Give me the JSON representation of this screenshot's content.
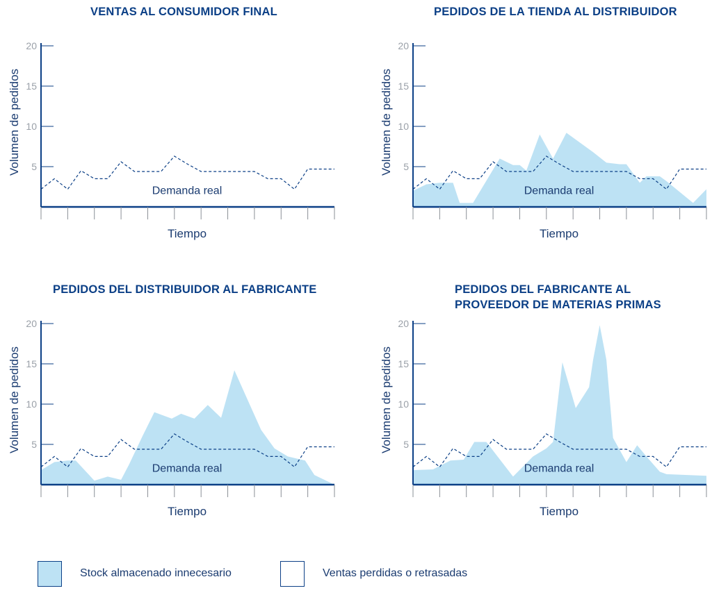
{
  "colors": {
    "axis": "#0b3f86",
    "title": "#0b3f86",
    "fill": "#bde2f4",
    "demand_line": "#0b3f86",
    "tick_label": "#9aa0a8",
    "axis_label": "#1a3b70"
  },
  "legend": {
    "excess": "Stock almacenado innecesario",
    "lost": "Ventas perdidas o retrasadas"
  },
  "chart_data": [
    {
      "type": "area",
      "title_lines": [
        "VENTAS AL CONSUMIDOR FINAL"
      ],
      "ylabel": "Volumen de pedidos",
      "xlabel": "Tiempo",
      "ylim": [
        0,
        20
      ],
      "yticks": [
        5,
        10,
        15,
        20
      ],
      "x_ticks": 11,
      "demand_label": "Demanda real",
      "demand": [
        [
          0,
          2.2
        ],
        [
          1,
          3.5
        ],
        [
          2,
          2.2
        ],
        [
          3,
          4.5
        ],
        [
          4,
          3.5
        ],
        [
          5,
          3.5
        ],
        [
          6,
          5.6
        ],
        [
          7,
          4.4
        ],
        [
          8,
          4.4
        ],
        [
          9,
          4.4
        ],
        [
          10,
          6.3
        ],
        [
          11,
          5.3
        ],
        [
          12,
          4.4
        ],
        [
          13,
          4.4
        ],
        [
          14,
          4.4
        ],
        [
          15,
          4.4
        ],
        [
          16,
          4.4
        ],
        [
          17,
          3.5
        ],
        [
          18,
          3.5
        ],
        [
          19,
          2.2
        ],
        [
          20,
          4.7
        ],
        [
          21,
          4.7
        ],
        [
          22,
          4.7
        ]
      ],
      "area": []
    },
    {
      "type": "area",
      "title_lines": [
        "PEDIDOS DE LA TIENDA AL DISTRIBUIDOR"
      ],
      "ylabel": "Volumen de pedidos",
      "xlabel": "Tiempo",
      "ylim": [
        0,
        20
      ],
      "yticks": [
        5,
        10,
        15,
        20
      ],
      "x_ticks": 11,
      "demand_label": "Demanda real",
      "demand": [
        [
          0,
          2.2
        ],
        [
          1,
          3.5
        ],
        [
          2,
          2.2
        ],
        [
          3,
          4.5
        ],
        [
          4,
          3.5
        ],
        [
          5,
          3.5
        ],
        [
          6,
          5.6
        ],
        [
          7,
          4.4
        ],
        [
          8,
          4.4
        ],
        [
          9,
          4.4
        ],
        [
          10,
          6.3
        ],
        [
          11,
          5.3
        ],
        [
          12,
          4.4
        ],
        [
          13,
          4.4
        ],
        [
          14,
          4.4
        ],
        [
          15,
          4.4
        ],
        [
          16,
          4.4
        ],
        [
          17,
          3.5
        ],
        [
          18,
          3.5
        ],
        [
          19,
          2.2
        ],
        [
          20,
          4.7
        ],
        [
          21,
          4.7
        ],
        [
          22,
          4.7
        ]
      ],
      "area": [
        [
          0,
          2
        ],
        [
          1,
          2.8
        ],
        [
          2,
          3
        ],
        [
          3,
          3
        ],
        [
          3.5,
          0.5
        ],
        [
          4.5,
          0.5
        ],
        [
          6.5,
          6
        ],
        [
          7.5,
          5.2
        ],
        [
          8,
          5.2
        ],
        [
          8.5,
          4.5
        ],
        [
          9.5,
          9
        ],
        [
          10.5,
          6
        ],
        [
          11.5,
          9.2
        ],
        [
          13.5,
          6.8
        ],
        [
          14.5,
          5.5
        ],
        [
          15.5,
          5.3
        ],
        [
          16,
          5.3
        ],
        [
          17,
          3
        ],
        [
          17.5,
          3.8
        ],
        [
          18.5,
          3.8
        ],
        [
          19,
          3.2
        ],
        [
          21,
          0.5
        ],
        [
          22,
          2.2
        ]
      ]
    },
    {
      "type": "area",
      "title_lines": [
        "PEDIDOS DEL DISTRIBUIDOR AL FABRICANTE"
      ],
      "ylabel": "Volumen de pedidos",
      "xlabel": "Tiempo",
      "ylim": [
        0,
        20
      ],
      "yticks": [
        5,
        10,
        15,
        20
      ],
      "x_ticks": 11,
      "demand_label": "Demanda real",
      "demand": [
        [
          0,
          2.2
        ],
        [
          1,
          3.5
        ],
        [
          2,
          2.2
        ],
        [
          3,
          4.5
        ],
        [
          4,
          3.5
        ],
        [
          5,
          3.5
        ],
        [
          6,
          5.6
        ],
        [
          7,
          4.4
        ],
        [
          8,
          4.4
        ],
        [
          9,
          4.4
        ],
        [
          10,
          6.3
        ],
        [
          11,
          5.3
        ],
        [
          12,
          4.4
        ],
        [
          13,
          4.4
        ],
        [
          14,
          4.4
        ],
        [
          15,
          4.4
        ],
        [
          16,
          4.4
        ],
        [
          17,
          3.5
        ],
        [
          18,
          3.5
        ],
        [
          19,
          2.2
        ],
        [
          20,
          4.7
        ],
        [
          21,
          4.7
        ],
        [
          22,
          4.7
        ]
      ],
      "area": [
        [
          0,
          1.8
        ],
        [
          1,
          2.8
        ],
        [
          2,
          3
        ],
        [
          2.6,
          3
        ],
        [
          4,
          0.5
        ],
        [
          5,
          1
        ],
        [
          6,
          0.6
        ],
        [
          6.6,
          2.5
        ],
        [
          7.6,
          6
        ],
        [
          8.5,
          9
        ],
        [
          9.8,
          8.2
        ],
        [
          10.5,
          8.8
        ],
        [
          11.5,
          8.2
        ],
        [
          12.5,
          9.9
        ],
        [
          13.5,
          8.3
        ],
        [
          14.5,
          14.2
        ],
        [
          15.5,
          10.5
        ],
        [
          16.5,
          6.8
        ],
        [
          17.5,
          4.5
        ],
        [
          18.5,
          3.5
        ],
        [
          19.8,
          3
        ],
        [
          20.5,
          1.2
        ],
        [
          22,
          0
        ]
      ]
    },
    {
      "type": "area",
      "title_lines": [
        "PEDIDOS DEL FABRICANTE AL",
        "PROVEEDOR DE MATERIAS PRIMAS"
      ],
      "ylabel": "Volumen de pedidos",
      "xlabel": "Tiempo",
      "ylim": [
        0,
        20
      ],
      "yticks": [
        5,
        10,
        15,
        20
      ],
      "x_ticks": 11,
      "demand_label": "Demanda real",
      "demand": [
        [
          0,
          2.2
        ],
        [
          1,
          3.5
        ],
        [
          2,
          2.2
        ],
        [
          3,
          4.5
        ],
        [
          4,
          3.5
        ],
        [
          5,
          3.5
        ],
        [
          6,
          5.6
        ],
        [
          7,
          4.4
        ],
        [
          8,
          4.4
        ],
        [
          9,
          4.4
        ],
        [
          10,
          6.3
        ],
        [
          11,
          5.3
        ],
        [
          12,
          4.4
        ],
        [
          13,
          4.4
        ],
        [
          14,
          4.4
        ],
        [
          15,
          4.4
        ],
        [
          16,
          4.4
        ],
        [
          17,
          3.5
        ],
        [
          18,
          3.5
        ],
        [
          19,
          2.2
        ],
        [
          20,
          4.7
        ],
        [
          21,
          4.7
        ],
        [
          22,
          4.7
        ]
      ],
      "area": [
        [
          0,
          1.8
        ],
        [
          1.5,
          1.9
        ],
        [
          2.8,
          3
        ],
        [
          3.8,
          3.1
        ],
        [
          4.6,
          5.3
        ],
        [
          5.5,
          5.3
        ],
        [
          7.5,
          1
        ],
        [
          9,
          3.5
        ],
        [
          10,
          4.5
        ],
        [
          10.5,
          5.3
        ],
        [
          11.2,
          15.2
        ],
        [
          12.2,
          9.5
        ],
        [
          13.2,
          12.1
        ],
        [
          13.5,
          15.5
        ],
        [
          14,
          19.8
        ],
        [
          14.5,
          15.5
        ],
        [
          15,
          5.8
        ],
        [
          16,
          2.8
        ],
        [
          16.8,
          4.9
        ],
        [
          17.5,
          3.5
        ],
        [
          18.5,
          1.6
        ],
        [
          19,
          1.3
        ],
        [
          22,
          1.1
        ]
      ]
    }
  ]
}
